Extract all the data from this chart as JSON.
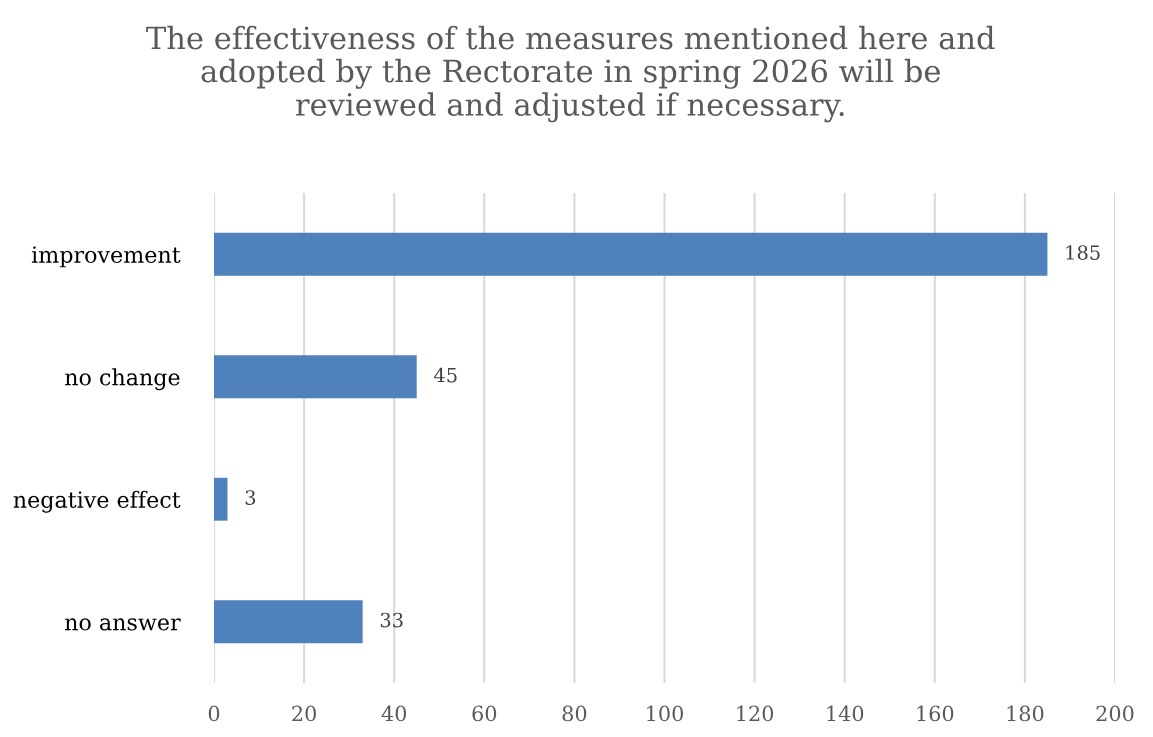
{
  "chart_data": {
    "type": "bar",
    "orientation": "horizontal",
    "title": "The effectiveness of the measures mentioned here and\nadopted by the Rectorate in spring 2026 will be\nreviewed and adjusted if necessary.",
    "categories": [
      "improvement",
      "no change",
      "negative effect",
      "no answer"
    ],
    "values": [
      185,
      45,
      3,
      33
    ],
    "color": "#4f81bd",
    "xlim": [
      0,
      200
    ],
    "xticks": [
      0,
      20,
      40,
      60,
      80,
      100,
      120,
      140,
      160,
      180,
      200
    ],
    "grid": "x",
    "data_labels": true
  }
}
